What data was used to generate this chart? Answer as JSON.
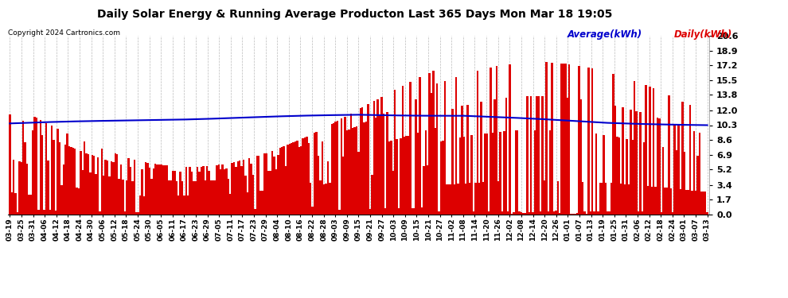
{
  "title": "Daily Solar Energy & Running Average Producton Last 365 Days Mon Mar 18 19:05",
  "copyright": "Copyright 2024 Cartronics.com",
  "legend_average": "Average(kWh)",
  "legend_daily": "Daily(kWh)",
  "bar_color": "#dd0000",
  "average_color": "#0000cc",
  "background_color": "#ffffff",
  "grid_color": "#bbbbbb",
  "yticks": [
    0.0,
    1.7,
    3.4,
    5.2,
    6.9,
    8.6,
    10.3,
    12.0,
    13.8,
    15.5,
    17.2,
    18.9,
    20.6
  ],
  "ymax": 20.6,
  "ymin": 0.0,
  "xtick_labels": [
    "03-19",
    "03-25",
    "03-31",
    "04-06",
    "04-12",
    "04-18",
    "04-24",
    "04-30",
    "05-06",
    "05-12",
    "05-18",
    "05-24",
    "05-30",
    "06-05",
    "06-11",
    "06-17",
    "06-23",
    "06-29",
    "07-05",
    "07-11",
    "07-17",
    "07-23",
    "07-29",
    "08-04",
    "08-10",
    "08-16",
    "08-22",
    "08-28",
    "09-03",
    "09-09",
    "09-15",
    "09-21",
    "09-27",
    "10-03",
    "10-09",
    "10-15",
    "10-21",
    "10-27",
    "11-02",
    "11-08",
    "11-14",
    "11-20",
    "11-26",
    "12-02",
    "12-08",
    "12-14",
    "12-20",
    "12-26",
    "01-01",
    "01-07",
    "01-13",
    "01-19",
    "01-25",
    "01-31",
    "02-06",
    "02-12",
    "02-18",
    "02-24",
    "03-01",
    "03-07",
    "03-13"
  ],
  "num_days": 365
}
